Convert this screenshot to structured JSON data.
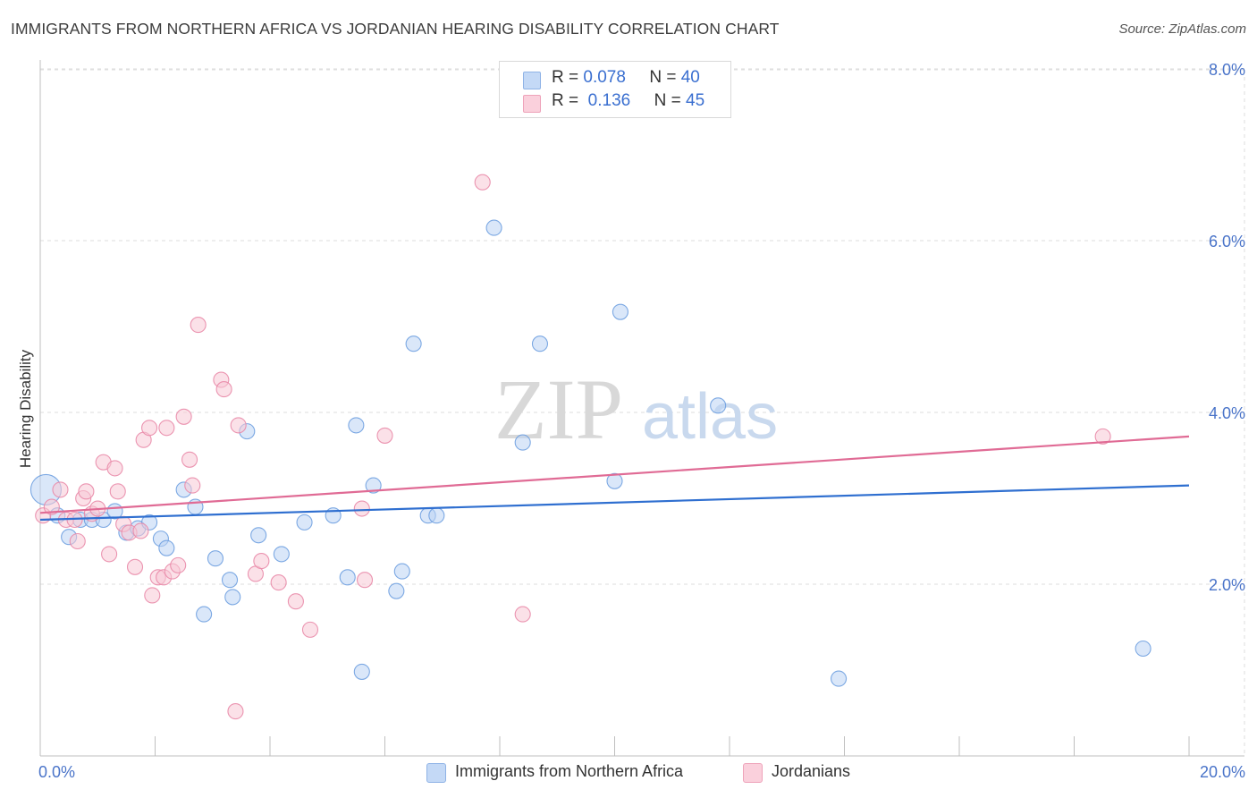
{
  "title": "IMMIGRANTS FROM NORTHERN AFRICA VS JORDANIAN HEARING DISABILITY CORRELATION CHART",
  "source": "Source: ZipAtlas.com",
  "watermark": {
    "zip": "ZIP",
    "atlas": "atlas"
  },
  "stats": [
    {
      "r_label": "R =",
      "r_value": "0.078",
      "n_label": "N =",
      "n_value": "40",
      "color": "#a9c8f0"
    },
    {
      "r_label": "R =",
      "r_value": "0.136",
      "n_label": "N =",
      "n_value": "45",
      "color": "#f5b8cb"
    }
  ],
  "legend": [
    {
      "label": "Immigrants from Northern Africa",
      "color": "#a9c8f0"
    },
    {
      "label": "Jordanians",
      "color": "#f5b8cb"
    }
  ],
  "chart_data": {
    "type": "scatter",
    "title": "IMMIGRANTS FROM NORTHERN AFRICA VS JORDANIAN HEARING DISABILITY CORRELATION CHART",
    "xlabel": "",
    "ylabel": "Hearing Disability",
    "xlim": [
      0,
      20
    ],
    "ylim": [
      0,
      8.2
    ],
    "x_tick_labels": [
      "0.0%",
      "20.0%"
    ],
    "y_ticks": [
      2,
      4,
      6,
      8
    ],
    "y_tick_labels": [
      "2.0%",
      "4.0%",
      "6.0%",
      "8.0%"
    ],
    "grid": true,
    "legend_position": "bottom-center",
    "series": [
      {
        "name": "Immigrants from Northern Africa",
        "color": "#6fa0e0",
        "fill": "#bcd4f4",
        "trend": {
          "x": [
            0,
            20
          ],
          "y": [
            2.75,
            3.15
          ]
        },
        "points": [
          {
            "x": 0.1,
            "y": 3.1,
            "big": true
          },
          {
            "x": 0.3,
            "y": 2.8
          },
          {
            "x": 0.5,
            "y": 2.55
          },
          {
            "x": 0.7,
            "y": 2.75
          },
          {
            "x": 0.9,
            "y": 2.75
          },
          {
            "x": 1.1,
            "y": 2.75
          },
          {
            "x": 1.3,
            "y": 2.85
          },
          {
            "x": 1.5,
            "y": 2.6
          },
          {
            "x": 1.7,
            "y": 2.65
          },
          {
            "x": 1.9,
            "y": 2.72
          },
          {
            "x": 2.1,
            "y": 2.53
          },
          {
            "x": 2.2,
            "y": 2.42
          },
          {
            "x": 2.5,
            "y": 3.1
          },
          {
            "x": 2.7,
            "y": 2.9
          },
          {
            "x": 2.85,
            "y": 1.65
          },
          {
            "x": 3.05,
            "y": 2.3
          },
          {
            "x": 3.3,
            "y": 2.05
          },
          {
            "x": 3.35,
            "y": 1.85
          },
          {
            "x": 3.6,
            "y": 3.78
          },
          {
            "x": 3.8,
            "y": 2.57
          },
          {
            "x": 4.2,
            "y": 2.35
          },
          {
            "x": 4.6,
            "y": 2.72
          },
          {
            "x": 5.1,
            "y": 2.8
          },
          {
            "x": 5.35,
            "y": 2.08
          },
          {
            "x": 5.5,
            "y": 3.85
          },
          {
            "x": 5.6,
            "y": 0.98
          },
          {
            "x": 5.8,
            "y": 3.15
          },
          {
            "x": 6.2,
            "y": 1.92
          },
          {
            "x": 6.3,
            "y": 2.15
          },
          {
            "x": 6.5,
            "y": 4.8
          },
          {
            "x": 6.75,
            "y": 2.8
          },
          {
            "x": 6.9,
            "y": 2.8
          },
          {
            "x": 7.9,
            "y": 6.15
          },
          {
            "x": 8.4,
            "y": 3.65
          },
          {
            "x": 8.7,
            "y": 4.8
          },
          {
            "x": 10.0,
            "y": 3.2
          },
          {
            "x": 10.1,
            "y": 5.17
          },
          {
            "x": 11.8,
            "y": 4.08
          },
          {
            "x": 13.9,
            "y": 0.9
          },
          {
            "x": 19.2,
            "y": 1.25
          }
        ]
      },
      {
        "name": "Jordanians",
        "color": "#e98aa8",
        "fill": "#f8c8d6",
        "trend": {
          "x": [
            0,
            20
          ],
          "y": [
            2.83,
            3.72
          ]
        },
        "points": [
          {
            "x": 0.05,
            "y": 2.8
          },
          {
            "x": 0.2,
            "y": 2.9
          },
          {
            "x": 0.35,
            "y": 3.1
          },
          {
            "x": 0.45,
            "y": 2.75
          },
          {
            "x": 0.6,
            "y": 2.75
          },
          {
            "x": 0.65,
            "y": 2.5
          },
          {
            "x": 0.75,
            "y": 3.0
          },
          {
            "x": 0.8,
            "y": 3.08
          },
          {
            "x": 0.9,
            "y": 2.82
          },
          {
            "x": 1.0,
            "y": 2.88
          },
          {
            "x": 1.1,
            "y": 3.42
          },
          {
            "x": 1.2,
            "y": 2.35
          },
          {
            "x": 1.3,
            "y": 3.35
          },
          {
            "x": 1.35,
            "y": 3.08
          },
          {
            "x": 1.45,
            "y": 2.7
          },
          {
            "x": 1.55,
            "y": 2.6
          },
          {
            "x": 1.65,
            "y": 2.2
          },
          {
            "x": 1.8,
            "y": 3.68
          },
          {
            "x": 1.9,
            "y": 3.82
          },
          {
            "x": 1.95,
            "y": 1.87
          },
          {
            "x": 2.05,
            "y": 2.08
          },
          {
            "x": 2.15,
            "y": 2.08
          },
          {
            "x": 2.2,
            "y": 3.82
          },
          {
            "x": 2.3,
            "y": 2.15
          },
          {
            "x": 2.4,
            "y": 2.22
          },
          {
            "x": 2.5,
            "y": 3.95
          },
          {
            "x": 2.6,
            "y": 3.45
          },
          {
            "x": 2.65,
            "y": 3.15
          },
          {
            "x": 2.75,
            "y": 5.02
          },
          {
            "x": 3.15,
            "y": 4.38
          },
          {
            "x": 3.2,
            "y": 4.27
          },
          {
            "x": 3.4,
            "y": 0.52
          },
          {
            "x": 3.45,
            "y": 3.85
          },
          {
            "x": 3.75,
            "y": 2.12
          },
          {
            "x": 3.85,
            "y": 2.27
          },
          {
            "x": 4.15,
            "y": 2.02
          },
          {
            "x": 4.45,
            "y": 1.8
          },
          {
            "x": 4.7,
            "y": 1.47
          },
          {
            "x": 5.6,
            "y": 2.88
          },
          {
            "x": 5.65,
            "y": 2.05
          },
          {
            "x": 6.0,
            "y": 3.73
          },
          {
            "x": 7.7,
            "y": 6.68
          },
          {
            "x": 8.4,
            "y": 1.65
          },
          {
            "x": 18.5,
            "y": 3.72
          },
          {
            "x": 1.75,
            "y": 2.62
          }
        ]
      }
    ]
  }
}
